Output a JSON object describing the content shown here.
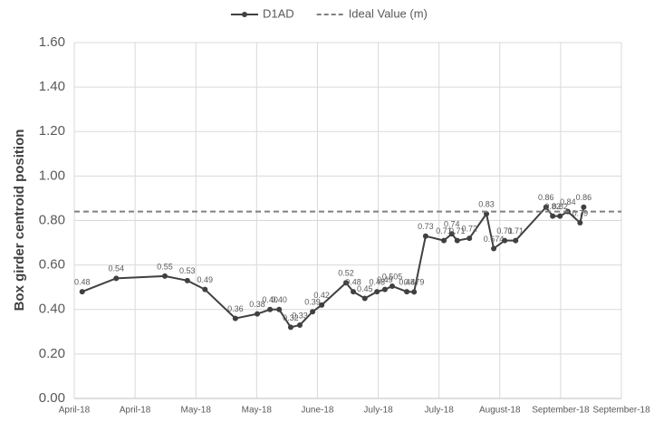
{
  "chart_data": {
    "type": "line",
    "y_label": "Box girder centroid position",
    "xlim": [
      0,
      9
    ],
    "xticks": [
      {
        "value": 0,
        "label": "April-18"
      },
      {
        "value": 1,
        "label": "April-18"
      },
      {
        "value": 2,
        "label": "May-18"
      },
      {
        "value": 3,
        "label": "May-18"
      },
      {
        "value": 4,
        "label": "June-18"
      },
      {
        "value": 5,
        "label": "July-18"
      },
      {
        "value": 6,
        "label": "July-18"
      },
      {
        "value": 7,
        "label": "August-18"
      },
      {
        "value": 8,
        "label": "September-18"
      },
      {
        "value": 9,
        "label": "September-18"
      }
    ],
    "ylim": [
      0,
      1.6
    ],
    "yticks": [
      {
        "value": 0,
        "label": "0.00"
      },
      {
        "value": 0.2,
        "label": "0.20"
      },
      {
        "value": 0.4,
        "label": "0.40"
      },
      {
        "value": 0.6,
        "label": "0.60"
      },
      {
        "value": 0.8,
        "label": "0.80"
      },
      {
        "value": 1.0,
        "label": "1.00"
      },
      {
        "value": 1.2,
        "label": "1.20"
      },
      {
        "value": 1.4,
        "label": "1.40"
      },
      {
        "value": 1.6,
        "label": "1.60"
      }
    ],
    "grid": true,
    "legend": "top",
    "series": [
      {
        "name": "D1AD",
        "color": "#404040",
        "x": [
          0.13,
          0.69,
          1.49,
          1.86,
          2.15,
          2.65,
          3.01,
          3.22,
          3.37,
          3.56,
          3.71,
          3.92,
          4.07,
          4.47,
          4.59,
          4.78,
          4.98,
          5.11,
          5.23,
          5.47,
          5.59,
          5.78,
          6.08,
          6.21,
          6.3,
          6.5,
          6.78,
          6.9,
          7.08,
          7.26,
          7.76,
          7.87,
          7.99,
          8.12,
          8.32,
          8.38
        ],
        "values": [
          0.48,
          0.54,
          0.55,
          0.53,
          0.49,
          0.36,
          0.38,
          0.4,
          0.4,
          0.32,
          0.33,
          0.39,
          0.42,
          0.52,
          0.48,
          0.45,
          0.48,
          0.49,
          0.505,
          0.48,
          0.479,
          0.73,
          0.71,
          0.74,
          0.71,
          0.72,
          0.83,
          0.674,
          0.71,
          0.71,
          0.86,
          0.82,
          0.82,
          0.84,
          0.79,
          0.86
        ],
        "value_labels": [
          "0.48",
          "0.54",
          "0.55",
          "0.53",
          "0.49",
          "0.36",
          "0.38",
          "0.40",
          "0.40",
          "0.32",
          "0.33",
          "0.39",
          "0.42",
          "0.52",
          "0.48",
          "0.45",
          "0.48",
          "0.49",
          "0.505",
          "0.48",
          "0.479",
          "0.73",
          "0.71",
          "0.74",
          "0.71",
          "0.72",
          "0.83",
          "0.674",
          "0.71",
          "0.71",
          "0.86",
          "0.82",
          "0.82",
          "0.84",
          "0.79",
          "0.86"
        ]
      },
      {
        "name": "Ideal Value (m)",
        "color": "#808080",
        "dashed": true,
        "values": [
          0.84
        ]
      }
    ]
  }
}
